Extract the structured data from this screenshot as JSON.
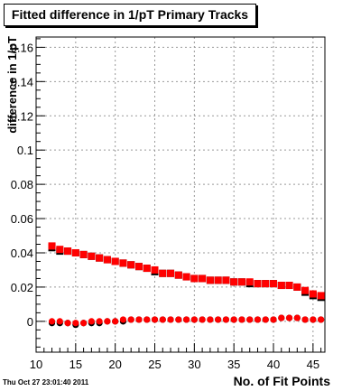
{
  "chart_data": {
    "type": "scatter",
    "title": "Fitted difference in 1/pT Primary Tracks",
    "xlabel": "No. of Fit Points",
    "ylabel": "difference in 1/pT",
    "xlim": [
      10,
      46.5
    ],
    "ylim": [
      -0.018,
      0.166
    ],
    "x_ticks": [
      "10",
      "15",
      "20",
      "25",
      "30",
      "35",
      "40",
      "45"
    ],
    "y_ticks": [
      "0",
      "0.02",
      "0.04",
      "0.06",
      "0.08",
      "0.1",
      "0.12",
      "0.14",
      "0.16"
    ],
    "grid": true,
    "timestamp": "Thu Oct 27 23:01:40 2011",
    "series": [
      {
        "color": "#000000",
        "marker": "square",
        "x": [
          12,
          13,
          14,
          15,
          16,
          17,
          18,
          19,
          20,
          21,
          22,
          23,
          24,
          25,
          26,
          27,
          28,
          29,
          30,
          31,
          32,
          33,
          34,
          35,
          36,
          37,
          38,
          39,
          40,
          41,
          42,
          43,
          44,
          45,
          46
        ],
        "y": [
          0.043,
          0.041,
          0.041,
          0.04,
          0.039,
          0.038,
          0.037,
          0.036,
          0.035,
          0.034,
          0.033,
          0.032,
          0.031,
          0.029,
          0.028,
          0.028,
          0.027,
          0.026,
          0.025,
          0.025,
          0.024,
          0.024,
          0.024,
          0.023,
          0.023,
          0.022,
          0.022,
          0.022,
          0.022,
          0.021,
          0.021,
          0.02,
          0.017,
          0.015,
          0.014
        ]
      },
      {
        "color": "#ff0000",
        "marker": "square",
        "x": [
          12,
          13,
          14,
          15,
          16,
          17,
          18,
          19,
          20,
          21,
          22,
          23,
          24,
          25,
          26,
          27,
          28,
          29,
          30,
          31,
          32,
          33,
          34,
          35,
          36,
          37,
          38,
          39,
          40,
          41,
          42,
          43,
          44,
          45,
          46
        ],
        "y": [
          0.044,
          0.042,
          0.041,
          0.04,
          0.039,
          0.038,
          0.037,
          0.036,
          0.035,
          0.034,
          0.033,
          0.032,
          0.031,
          0.03,
          0.028,
          0.028,
          0.027,
          0.026,
          0.025,
          0.025,
          0.024,
          0.024,
          0.024,
          0.023,
          0.023,
          0.023,
          0.022,
          0.022,
          0.022,
          0.021,
          0.021,
          0.02,
          0.018,
          0.016,
          0.015
        ]
      },
      {
        "color": "#000000",
        "marker": "circle",
        "x": [
          12,
          13,
          14,
          15,
          16,
          17,
          18,
          19,
          20,
          21,
          22,
          23,
          24,
          25,
          26,
          27,
          28,
          29,
          30,
          31,
          32,
          33,
          34,
          35,
          36,
          37,
          38,
          39,
          40,
          41,
          42,
          43,
          44,
          45,
          46
        ],
        "y": [
          -0.001,
          -0.001,
          -0.001,
          -0.002,
          -0.001,
          -0.001,
          -0.001,
          0.0,
          0.0,
          0.0,
          0.001,
          0.001,
          0.001,
          0.001,
          0.001,
          0.001,
          0.001,
          0.001,
          0.001,
          0.001,
          0.001,
          0.001,
          0.001,
          0.001,
          0.001,
          0.001,
          0.001,
          0.001,
          0.001,
          0.002,
          0.002,
          0.002,
          0.001,
          0.001,
          0.001
        ]
      },
      {
        "color": "#ff0000",
        "marker": "circle",
        "x": [
          12,
          13,
          14,
          15,
          16,
          17,
          18,
          19,
          20,
          21,
          22,
          23,
          24,
          25,
          26,
          27,
          28,
          29,
          30,
          31,
          32,
          33,
          34,
          35,
          36,
          37,
          38,
          39,
          40,
          41,
          42,
          43,
          44,
          45,
          46
        ],
        "y": [
          0.0,
          0.0,
          -0.001,
          -0.001,
          -0.001,
          0.0,
          0.0,
          0.0,
          0.0,
          0.001,
          0.001,
          0.001,
          0.001,
          0.001,
          0.001,
          0.001,
          0.001,
          0.001,
          0.001,
          0.001,
          0.001,
          0.001,
          0.001,
          0.001,
          0.001,
          0.001,
          0.001,
          0.001,
          0.001,
          0.002,
          0.002,
          0.002,
          0.001,
          0.001,
          0.001
        ]
      }
    ]
  }
}
